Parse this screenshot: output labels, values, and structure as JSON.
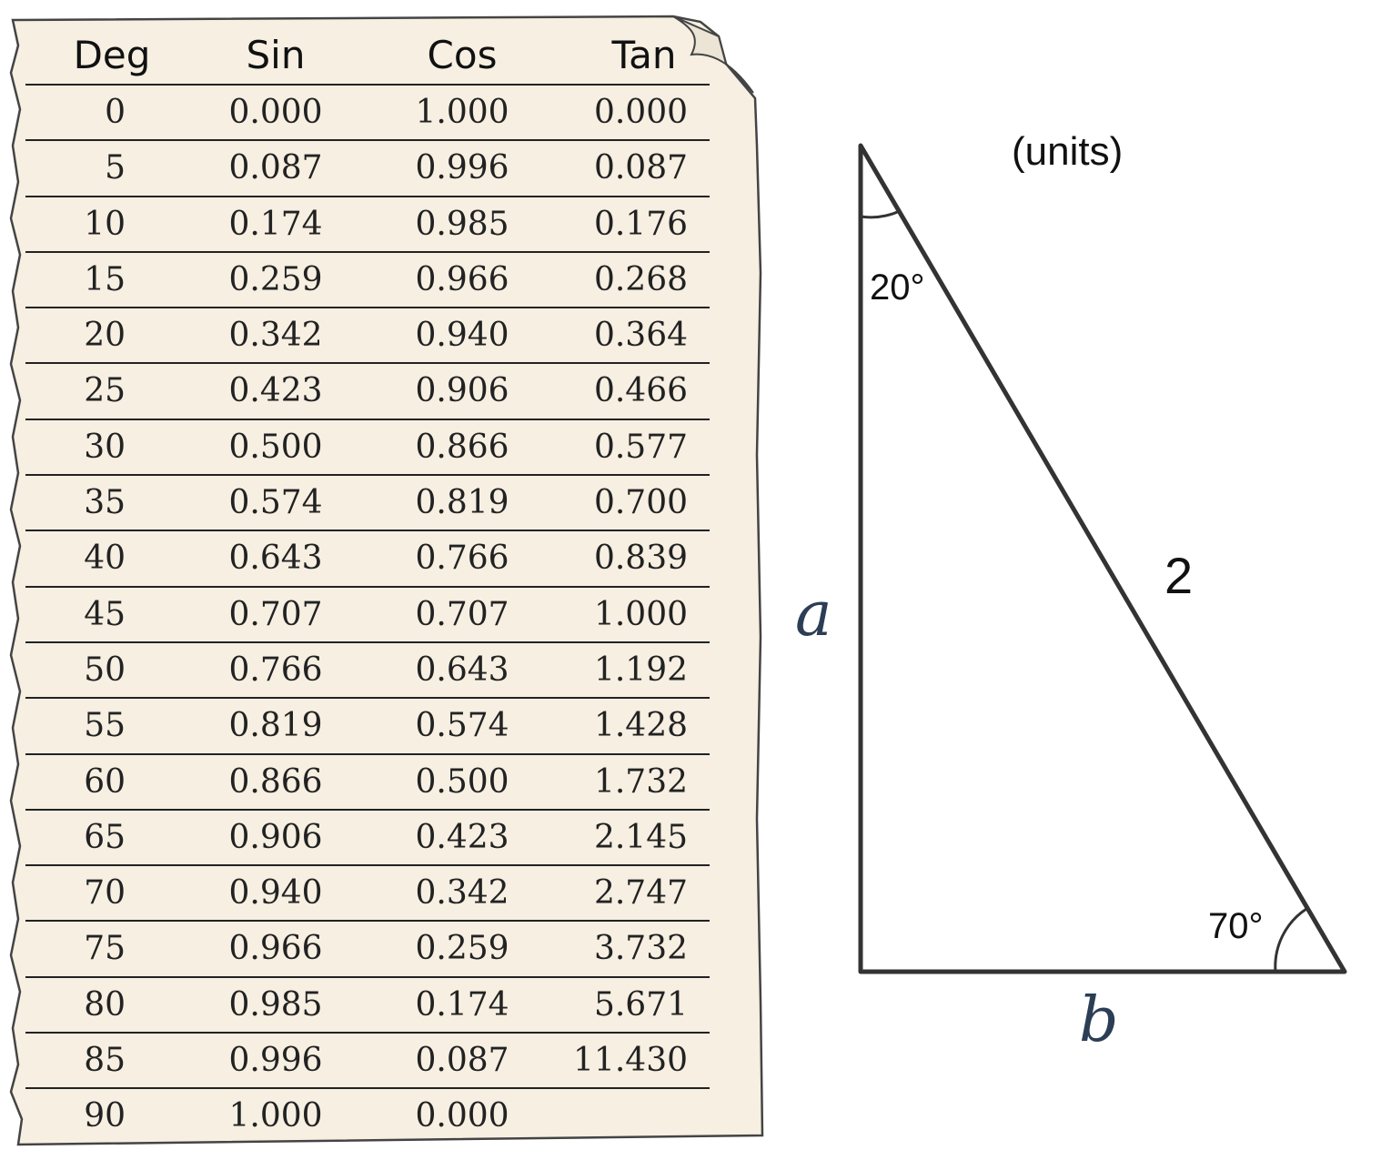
{
  "table": {
    "headers": [
      "Deg",
      "Sin",
      "Cos",
      "Tan"
    ],
    "rows": [
      [
        "0",
        "0.000",
        "1.000",
        "0.000"
      ],
      [
        "5",
        "0.087",
        "0.996",
        "0.087"
      ],
      [
        "10",
        "0.174",
        "0.985",
        "0.176"
      ],
      [
        "15",
        "0.259",
        "0.966",
        "0.268"
      ],
      [
        "20",
        "0.342",
        "0.940",
        "0.364"
      ],
      [
        "25",
        "0.423",
        "0.906",
        "0.466"
      ],
      [
        "30",
        "0.500",
        "0.866",
        "0.577"
      ],
      [
        "35",
        "0.574",
        "0.819",
        "0.700"
      ],
      [
        "40",
        "0.643",
        "0.766",
        "0.839"
      ],
      [
        "45",
        "0.707",
        "0.707",
        "1.000"
      ],
      [
        "50",
        "0.766",
        "0.643",
        "1.192"
      ],
      [
        "55",
        "0.819",
        "0.574",
        "1.428"
      ],
      [
        "60",
        "0.866",
        "0.500",
        "1.732"
      ],
      [
        "65",
        "0.906",
        "0.423",
        "2.145"
      ],
      [
        "70",
        "0.940",
        "0.342",
        "2.747"
      ],
      [
        "75",
        "0.966",
        "0.259",
        "3.732"
      ],
      [
        "80",
        "0.985",
        "0.174",
        "5.671"
      ],
      [
        "85",
        "0.996",
        "0.087",
        "11.430"
      ],
      [
        "90",
        "1.000",
        "0.000",
        ""
      ]
    ]
  },
  "triangle": {
    "units": "(units)",
    "top_angle": "20°",
    "bottom_angle": "70°",
    "hypotenuse": "2",
    "side_a": "a",
    "side_b": "b"
  },
  "colors": {
    "paper": "#f6efe2",
    "paper_edge": "#444444",
    "ink": "#222222",
    "variable": "#2c3e55"
  }
}
